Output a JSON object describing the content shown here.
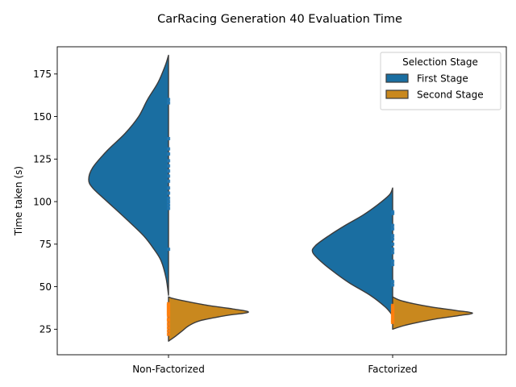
{
  "chart_data": {
    "type": "violin",
    "title": "CarRacing Generation 40 Evaluation Time",
    "xlabel": "",
    "ylabel": "Time taken (s)",
    "categories": [
      "Non-Factorized",
      "Factorized"
    ],
    "yticks": [
      25,
      50,
      75,
      100,
      125,
      150,
      175
    ],
    "ylim": [
      10,
      191
    ],
    "grid": false,
    "legend": {
      "title": "Selection Stage",
      "placement": "top-right",
      "entries": [
        "First Stage",
        "Second Stage"
      ]
    },
    "series": [
      {
        "name": "First Stage",
        "color": "#1a6ea1",
        "point_color": "#1f77b4",
        "side": "left",
        "distributions": [
          {
            "category": "Non-Factorized",
            "range": [
              45,
              186
            ],
            "profile": [
              [
                45,
                0
              ],
              [
                55,
                0.03
              ],
              [
                65,
                0.09
              ],
              [
                72,
                0.18
              ],
              [
                80,
                0.31
              ],
              [
                90,
                0.53
              ],
              [
                100,
                0.76
              ],
              [
                108,
                0.94
              ],
              [
                113,
                0.99
              ],
              [
                120,
                0.94
              ],
              [
                130,
                0.76
              ],
              [
                140,
                0.54
              ],
              [
                150,
                0.37
              ],
              [
                160,
                0.26
              ],
              [
                170,
                0.13
              ],
              [
                180,
                0.04
              ],
              [
                186,
                0
              ]
            ],
            "points": [
              72,
              96,
              98,
              100,
              102,
              105,
              108,
              112,
              115,
              118,
              121,
              124,
              128,
              131,
              137,
              158,
              160
            ]
          },
          {
            "category": "Factorized",
            "range": [
              33,
              108
            ],
            "profile": [
              [
                33,
                0
              ],
              [
                38,
                0.09
              ],
              [
                45,
                0.28
              ],
              [
                52,
                0.53
              ],
              [
                58,
                0.71
              ],
              [
                64,
                0.87
              ],
              [
                70,
                0.99
              ],
              [
                74,
                0.96
              ],
              [
                80,
                0.79
              ],
              [
                86,
                0.59
              ],
              [
                92,
                0.37
              ],
              [
                98,
                0.19
              ],
              [
                104,
                0.04
              ],
              [
                108,
                0
              ]
            ],
            "points": [
              51,
              53,
              63,
              65,
              70,
              72,
              75,
              78,
              80,
              84,
              86,
              93,
              94
            ]
          }
        ]
      },
      {
        "name": "Second Stage",
        "color": "#c9881e",
        "point_color": "#ff7f0e",
        "side": "right",
        "distributions": [
          {
            "category": "Non-Factorized",
            "range": [
              18,
              44
            ],
            "profile": [
              [
                18,
                0
              ],
              [
                21,
                0.09
              ],
              [
                24,
                0.17
              ],
              [
                27,
                0.25
              ],
              [
                30,
                0.39
              ],
              [
                33,
                0.71
              ],
              [
                35,
                0.99
              ],
              [
                37,
                0.79
              ],
              [
                39,
                0.49
              ],
              [
                41,
                0.26
              ],
              [
                43,
                0.06
              ],
              [
                44,
                0
              ]
            ],
            "points": [
              22,
              24,
              26,
              28,
              30,
              31,
              33,
              34,
              35,
              36,
              37,
              38,
              39,
              40
            ]
          },
          {
            "category": "Factorized",
            "range": [
              25,
              44
            ],
            "profile": [
              [
                25,
                0
              ],
              [
                27,
                0.13
              ],
              [
                29,
                0.31
              ],
              [
                31,
                0.53
              ],
              [
                33,
                0.82
              ],
              [
                34.5,
                0.99
              ],
              [
                36,
                0.79
              ],
              [
                38,
                0.49
              ],
              [
                40,
                0.26
              ],
              [
                42,
                0.09
              ],
              [
                44,
                0
              ]
            ],
            "points": [
              29,
              30,
              31,
              32,
              33,
              34,
              35,
              36,
              37,
              38,
              39
            ]
          }
        ]
      }
    ]
  }
}
